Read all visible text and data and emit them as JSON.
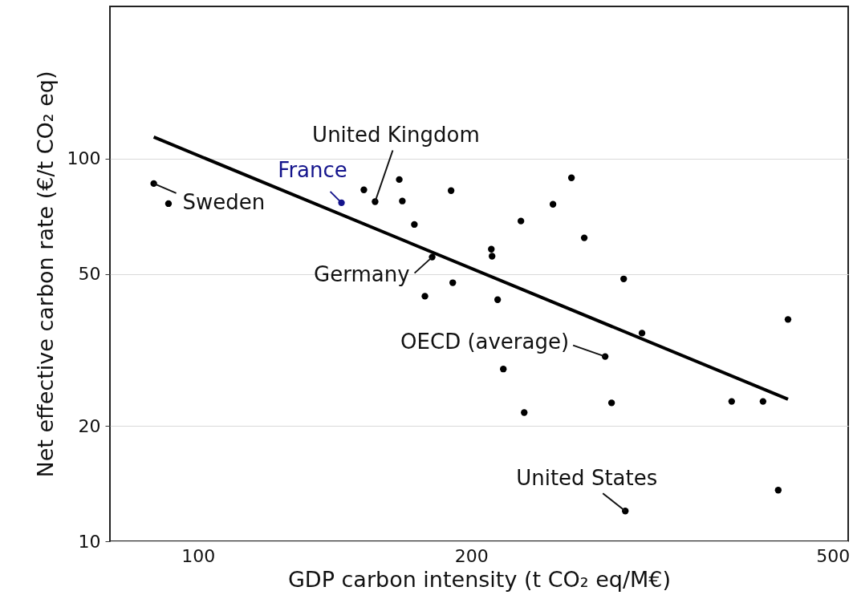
{
  "chart_data": {
    "type": "scatter",
    "xlabel": "GDP carbon intensity (t CO₂ eq/M€)",
    "ylabel": "Net effective carbon rate (€/t CO₂ eq)",
    "log": "xy",
    "grid": "y",
    "xlim": [
      80,
      520
    ],
    "xticks": [
      100,
      200,
      500
    ],
    "ylim": [
      10,
      250
    ],
    "yticks": [
      10,
      20,
      50,
      100
    ],
    "series": [
      {
        "marker": "circle",
        "x": [
          89.4,
          92.8,
          143.9,
          152.3,
          156.7,
          166.6,
          167.9,
          173.1,
          181.1,
          177.8,
          190.8,
          190.0,
          210.4,
          210.8,
          213.8,
          216.9,
          226.8,
          228.7,
          246.0,
          257.8,
          266.3,
          280.8,
          285.4,
          294.3,
          295.5,
          308.3,
          387.0,
          419.0,
          435.5,
          446.4
        ],
        "values": [
          86.1,
          76.3,
          76.7,
          82.9,
          77.2,
          88.2,
          77.5,
          67.3,
          55.3,
          43.7,
          47.4,
          82.5,
          58.0,
          55.6,
          42.8,
          28.2,
          68.7,
          21.7,
          76.0,
          89.1,
          62.1,
          30.4,
          23.0,
          48.5,
          12.0,
          35.0,
          23.2,
          23.2,
          13.6,
          38.0
        ],
        "colors": [
          "#000000",
          "#000000",
          "#14148c",
          "#000000",
          "#000000",
          "#000000",
          "#000000",
          "#000000",
          "#000000",
          "#000000",
          "#000000",
          "#000000",
          "#000000",
          "#000000",
          "#000000",
          "#000000",
          "#000000",
          "#000000",
          "#000000",
          "#000000",
          "#000000",
          "#000000",
          "#000000",
          "#000000",
          "#000000",
          "#000000",
          "#000000",
          "#000000",
          "#000000",
          "#000000"
        ]
      },
      {
        "type": "line",
        "marker": "none",
        "color": "#000000",
        "x": [
          89.4,
          446.4
        ],
        "values": [
          113.9,
          23.5
        ]
      }
    ],
    "annotations": [
      {
        "text": "Sweden",
        "x": 89.4,
        "y": 86.1
      },
      {
        "text": "France",
        "x": 143.9,
        "y": 76.7
      },
      {
        "text": "United Kingdom",
        "x": 156.7,
        "y": 77.2
      },
      {
        "text": "Germany",
        "x": 181.1,
        "y": 55.3
      },
      {
        "text": "OECD (average)",
        "x": 280.8,
        "y": 30.4
      },
      {
        "text": "United States",
        "x": 295.5,
        "y": 12.0
      }
    ]
  }
}
